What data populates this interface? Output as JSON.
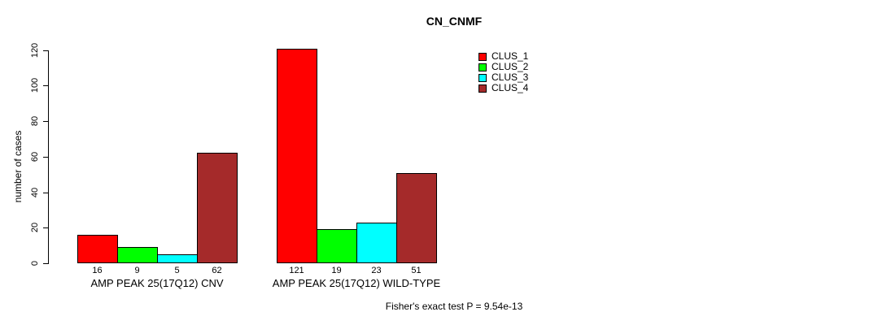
{
  "title": "CN_CNMF",
  "footer": "Fisher's exact test P = 9.54e-13",
  "chart_data": {
    "type": "bar",
    "title": "CN_CNMF",
    "xlabel": "",
    "ylabel": "number of cases",
    "ylim": [
      0,
      120
    ],
    "yticks": [
      0,
      20,
      40,
      60,
      80,
      100,
      120
    ],
    "grid": false,
    "legend_position": "top-right",
    "bar_border_color": "#000000",
    "series": [
      {
        "name": "CLUS_1",
        "color": "#FF0000"
      },
      {
        "name": "CLUS_2",
        "color": "#00FF00"
      },
      {
        "name": "CLUS_3",
        "color": "#00FFFF"
      },
      {
        "name": "CLUS_4",
        "color": "#A52A2A"
      }
    ],
    "groups": [
      {
        "label": "AMP PEAK 25(17Q12) CNV",
        "values": [
          16,
          9,
          5,
          62
        ]
      },
      {
        "label": "AMP PEAK 25(17Q12) WILD-TYPE",
        "values": [
          121,
          19,
          23,
          51
        ]
      }
    ],
    "bar_value_labels_shown": true,
    "annotation": "Fisher's exact test P = 9.54e-13"
  }
}
